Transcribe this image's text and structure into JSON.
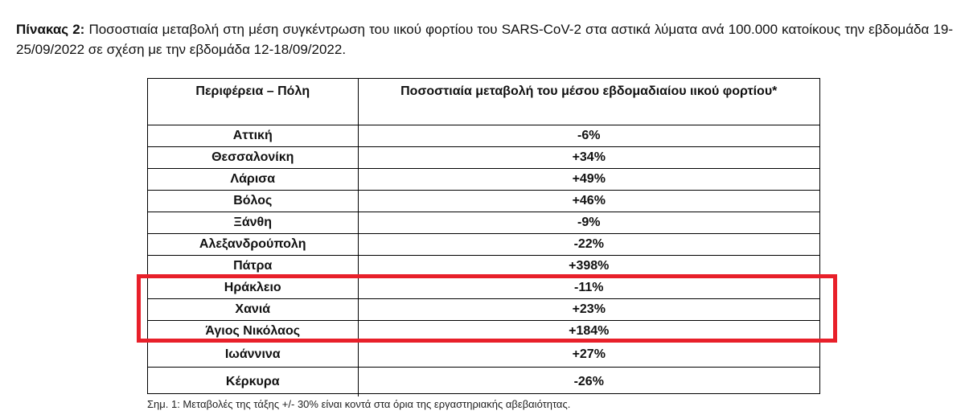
{
  "caption": {
    "label": "Πίνακας 2:",
    "text": " Ποσοστιαία μεταβολή στη μέση συγκέντρωση του ιικού φορτίου του SARS-CoV-2 στα αστικά λύματα ανά 100.000 κατοίκους την εβδομάδα 19-25/09/2022 σε σχέση με την εβδομάδα 12-18/09/2022."
  },
  "table": {
    "headers": [
      "Περιφέρεια – Πόλη",
      "Ποσοστιαία μεταβολή του μέσου εβδομαδιαίου ιικού φορτίου*"
    ],
    "rows": [
      {
        "city": "Αττική",
        "change": "-6%"
      },
      {
        "city": "Θεσσαλονίκη",
        "change": "+34%"
      },
      {
        "city": "Λάρισα",
        "change": "+49%"
      },
      {
        "city": "Βόλος",
        "change": "+46%"
      },
      {
        "city": "Ξάνθη",
        "change": "-9%"
      },
      {
        "city": "Αλεξανδρούπολη",
        "change": "-22%"
      },
      {
        "city": "Πάτρα",
        "change": "+398%"
      },
      {
        "city": "Ηράκλειο",
        "change": "-11%"
      },
      {
        "city": "Χανιά",
        "change": "+23%"
      },
      {
        "city": "Άγιος Νικόλαος",
        "change": "+184%"
      },
      {
        "city": "Ιωάννινα",
        "change": "+27%"
      },
      {
        "city": "Κέρκυρα",
        "change": "-26%"
      }
    ]
  },
  "highlight": {
    "rows": [
      "Ηράκλειο",
      "Χανιά",
      "Άγιος Νικόλαος"
    ],
    "color": "#e8202a"
  },
  "footnote": "Σημ. 1: Μεταβολές της τάξης +/- 30% είναι κοντά στα όρια της εργαστηριακής αβεβαιότητας."
}
